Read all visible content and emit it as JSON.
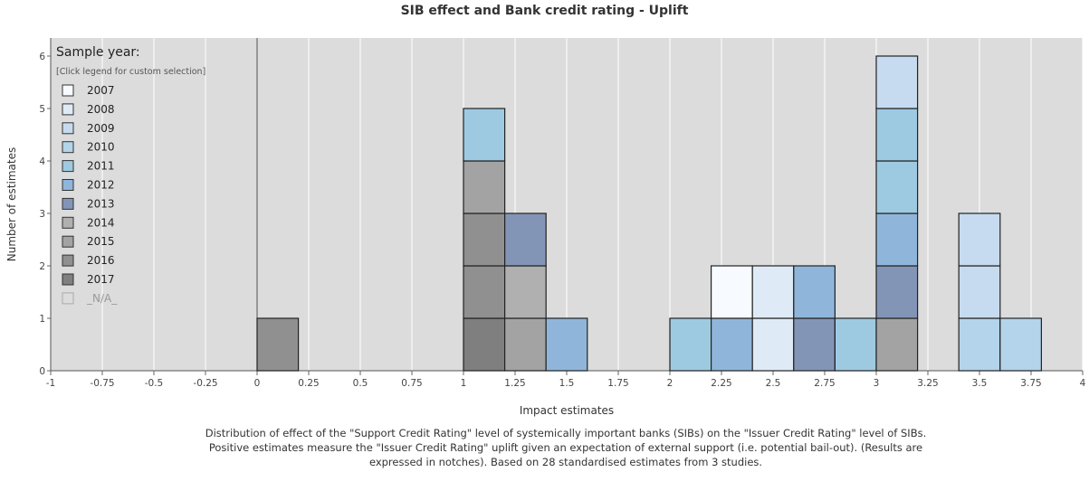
{
  "chart_data": {
    "type": "bar",
    "title": "SIB effect and Bank credit rating - Uplift",
    "xlabel": "Impact estimates",
    "ylabel": "Number of estimates",
    "xlim": [
      -1,
      4
    ],
    "ylim": [
      0,
      6.2
    ],
    "x_ticks": [
      "-1",
      "-0.75",
      "-0.5",
      "-0.25",
      "0",
      "0.25",
      "0.5",
      "0.75",
      "1",
      "1.25",
      "1.5",
      "1.75",
      "2",
      "2.25",
      "2.5",
      "2.75",
      "3",
      "3.25",
      "3.5",
      "3.75",
      "4"
    ],
    "y_ticks": [
      "0",
      "1",
      "2",
      "3",
      "4",
      "5",
      "6"
    ],
    "grid": true,
    "stacked": true,
    "bin_width": 0.2,
    "legend": {
      "title": "Sample year:",
      "subtitle": "[Click legend for custom selection]",
      "position": "top-left",
      "entries": [
        {
          "label": "2007",
          "color": "#f7fbff"
        },
        {
          "label": "2008",
          "color": "#deebf7"
        },
        {
          "label": "2009",
          "color": "#c6dbef"
        },
        {
          "label": "2010",
          "color": "#b3d4ea"
        },
        {
          "label": "2011",
          "color": "#9ecae1"
        },
        {
          "label": "2012",
          "color": "#8fb6da"
        },
        {
          "label": "2013",
          "color": "#8395b7"
        },
        {
          "label": "2014",
          "color": "#b0b0b0"
        },
        {
          "label": "2015",
          "color": "#a3a3a3"
        },
        {
          "label": "2016",
          "color": "#909090"
        },
        {
          "label": "2017",
          "color": "#7f7f7f"
        },
        {
          "label": "_N/A_",
          "color": "#dcdcdc",
          "muted": true
        }
      ]
    },
    "bins": [
      {
        "x0": 0.0,
        "stack": [
          {
            "series": "2016",
            "count": 1
          }
        ]
      },
      {
        "x0": 1.0,
        "stack": [
          {
            "series": "2017",
            "count": 1
          },
          {
            "series": "2016",
            "count": 2
          },
          {
            "series": "2015",
            "count": 1
          },
          {
            "series": "2011",
            "count": 1
          }
        ]
      },
      {
        "x0": 1.2,
        "stack": [
          {
            "series": "2015",
            "count": 1
          },
          {
            "series": "2014",
            "count": 1
          },
          {
            "series": "2013",
            "count": 1
          }
        ]
      },
      {
        "x0": 1.4,
        "stack": [
          {
            "series": "2012",
            "count": 1
          }
        ]
      },
      {
        "x0": 2.0,
        "stack": [
          {
            "series": "2011",
            "count": 1
          }
        ]
      },
      {
        "x0": 2.2,
        "stack": [
          {
            "series": "2012",
            "count": 1
          },
          {
            "series": "2007",
            "count": 1
          }
        ]
      },
      {
        "x0": 2.4,
        "stack": [
          {
            "series": "2008",
            "count": 2
          }
        ]
      },
      {
        "x0": 2.6,
        "stack": [
          {
            "series": "2013",
            "count": 1
          },
          {
            "series": "2012",
            "count": 1
          }
        ]
      },
      {
        "x0": 2.8,
        "stack": [
          {
            "series": "2011",
            "count": 1
          }
        ]
      },
      {
        "x0": 3.0,
        "stack": [
          {
            "series": "2015",
            "count": 1
          },
          {
            "series": "2013",
            "count": 1
          },
          {
            "series": "2012",
            "count": 1
          },
          {
            "series": "2011",
            "count": 2
          },
          {
            "series": "2009",
            "count": 1
          }
        ]
      },
      {
        "x0": 3.4,
        "stack": [
          {
            "series": "2010",
            "count": 1
          },
          {
            "series": "2009",
            "count": 2
          }
        ]
      },
      {
        "x0": 3.6,
        "stack": [
          {
            "series": "2010",
            "count": 1
          }
        ]
      }
    ],
    "caption": "Distribution of effect of the \"Support Credit Rating\" level of systemically important banks (SIBs) on the \"Issuer Credit Rating\" level of SIBs. Positive estimates measure the \"Issuer Credit Rating\" uplift given an expectation of external support (i.e. potential bail-out). (Results are expressed in notches). Based on 28 standardised estimates from 3 studies."
  }
}
